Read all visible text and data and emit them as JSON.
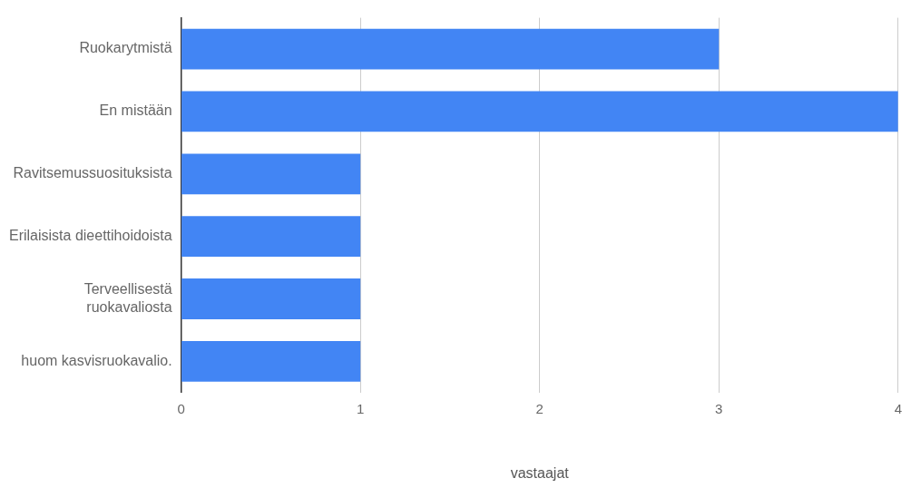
{
  "chart_data": {
    "type": "bar",
    "orientation": "horizontal",
    "xlabel": "vastaajat",
    "categories": [
      "Ruokarytmistä",
      "En mistään",
      "Ravitsemussuosituksista",
      "Erilaisista dieettihoidoista",
      "Terveellisestä ruokavaliosta",
      "huom kasvisruokavalio."
    ],
    "values": [
      3,
      4,
      1,
      1,
      1,
      1
    ],
    "color": "#4285f4",
    "xlim": [
      0,
      4
    ],
    "xticks": [
      0,
      1,
      2,
      3,
      4
    ],
    "grid": "x",
    "legend": false
  }
}
